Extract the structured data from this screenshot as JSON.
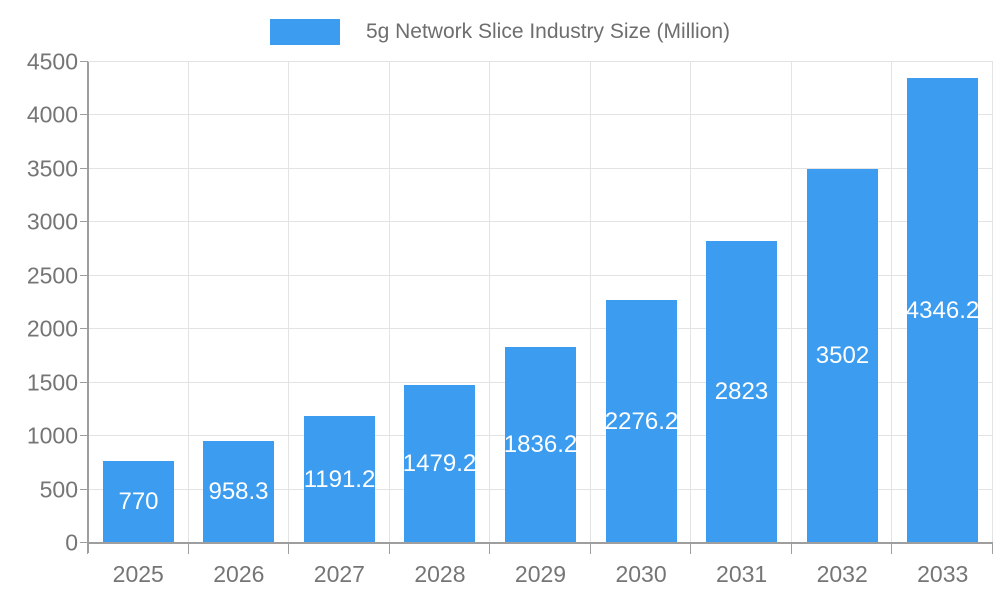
{
  "chart_data": {
    "type": "bar",
    "legend_label": "5g Network Slice Industry Size (Million)",
    "categories": [
      "2025",
      "2026",
      "2027",
      "2028",
      "2029",
      "2030",
      "2031",
      "2032",
      "2033"
    ],
    "values": [
      770,
      958.3,
      1191.2,
      1479.2,
      1836.2,
      2276.2,
      2823,
      3502,
      4346.2
    ],
    "value_labels": [
      "770",
      "958.3",
      "1191.2",
      "1479.2",
      "1836.2",
      "2276.2",
      "2823",
      "3502",
      "4346.2"
    ],
    "ylim": [
      0,
      4500
    ],
    "y_ticks": [
      0,
      500,
      1000,
      1500,
      2000,
      2500,
      3000,
      3500,
      4000,
      4500
    ],
    "grid": "both",
    "legend_position": "top-center",
    "colors": {
      "bar": "#3b9cf0",
      "tick_label": "#757575",
      "legend_text": "#6e6e6e",
      "value_text": "#ffffff",
      "grid": "#e3e3e3",
      "axis": "#9e9e9e",
      "background": "#ffffff"
    }
  }
}
